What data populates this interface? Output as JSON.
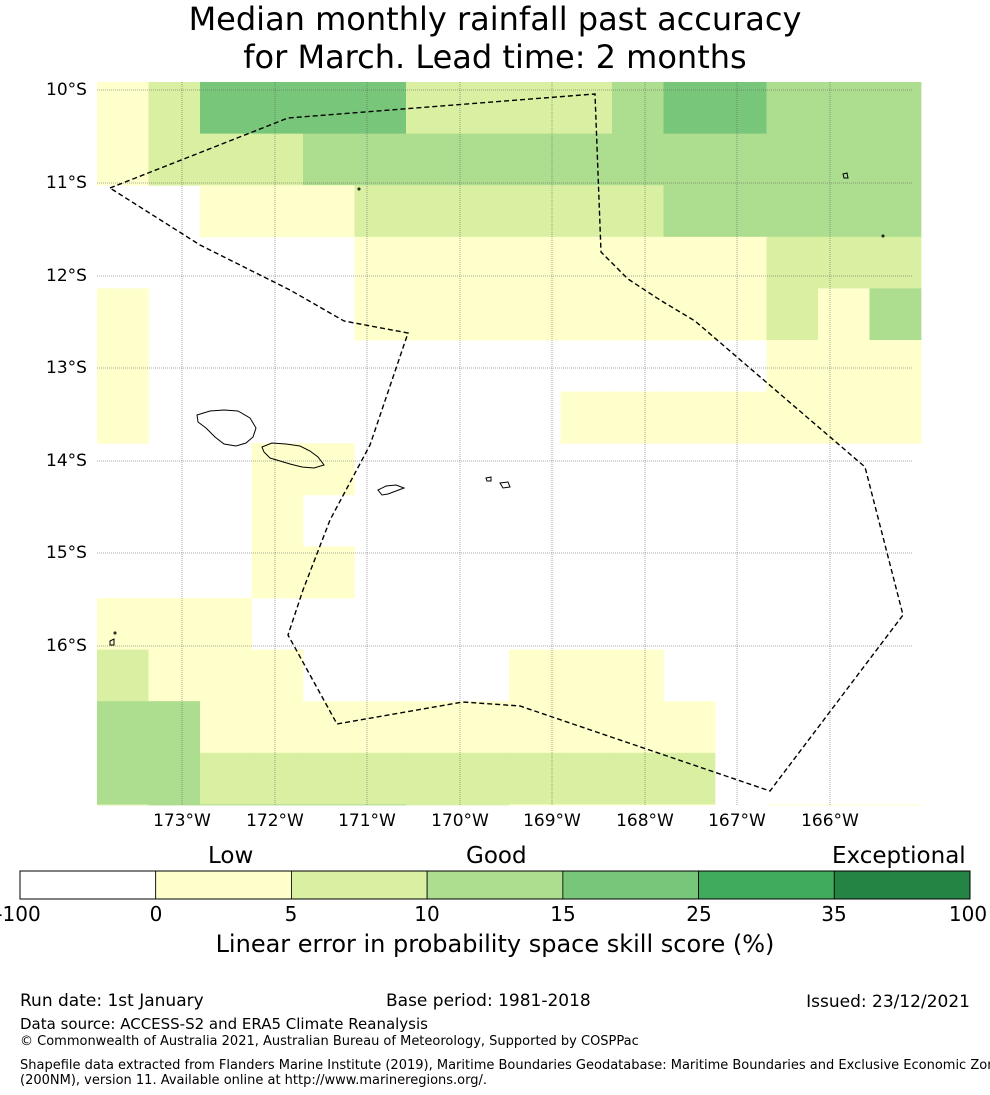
{
  "title": {
    "line1": "Median monthly rainfall past accuracy",
    "line2": "for March. Lead time: 2 months"
  },
  "map": {
    "lat_labels": [
      "10°S",
      "11°S",
      "12°S",
      "13°S",
      "14°S",
      "15°S",
      "16°S"
    ],
    "lon_labels": [
      "173°W",
      "172°W",
      "171°W",
      "170°W",
      "169°W",
      "168°W",
      "167°W",
      "166°W"
    ],
    "grid_rows": [
      "1244442222344333",
      "1222333333333333",
      "0011122222233333",
      "0000011111111222",
      "1000011111111213",
      "1000000000000111",
      "1000000001111111",
      "0001100000000000",
      "0001000000000000",
      "0001100000000000",
      "1110000000000000",
      "2111000011100000",
      "3311111111110000",
      "3322222222220000",
      "2333332211110111",
      "3333332222211111",
      "3344332222221100"
    ],
    "colors": [
      "#ffffff",
      "#ffffcc",
      "#d9f0a3",
      "#addd8e",
      "#78c679",
      "#41ab5d",
      "#238443"
    ]
  },
  "colorbar": {
    "category_labels": [
      "Low",
      "Good",
      "Exceptional"
    ],
    "ticks": [
      "-100",
      "0",
      "5",
      "10",
      "15",
      "25",
      "35",
      "100"
    ],
    "colors": [
      "#ffffff",
      "#ffffcc",
      "#d9f0a3",
      "#addd8e",
      "#78c679",
      "#41ab5d",
      "#238443"
    ],
    "label": "Linear error in probability space skill score (%)"
  },
  "footer": {
    "run_date": "Run date: 1st January",
    "base_period": "Base period: 1981-2018",
    "issued": "Issued: 23/12/2021",
    "data_source": "Data source: ACCESS-S2 and ERA5 Climate Reanalysis",
    "copyright": "© Commonwealth of Australia 2021, Australian Bureau of Meteorology, Supported by COSPPac",
    "shapefile_line1": "Shapefile data extracted from Flanders Marine Institute (2019), Maritime Boundaries Geodatabase: Maritime Boundaries and Exclusive Economic Zones",
    "shapefile_line2": "(200NM), version 11. Available online at http://www.marineregions.org/."
  }
}
